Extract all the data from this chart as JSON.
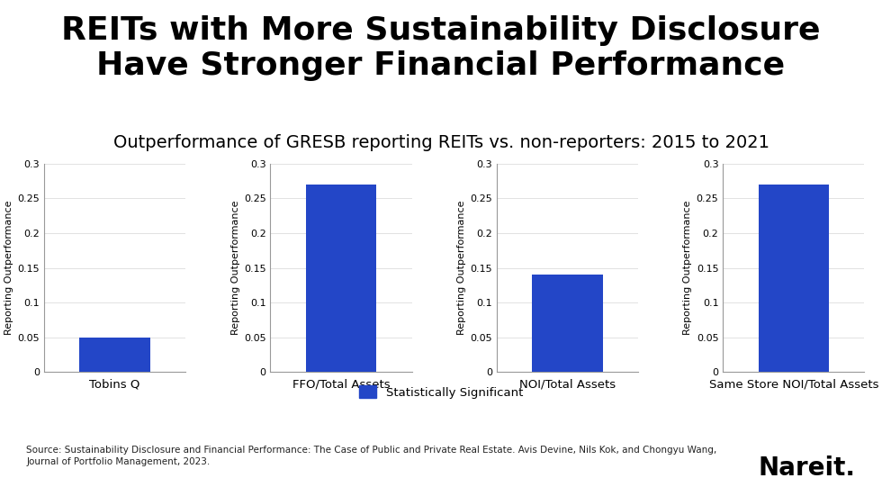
{
  "title": "REITs with More Sustainability Disclosure\nHave Stronger Financial Performance",
  "subtitle": "Outperformance of GRESB reporting REITs vs. non-reporters: 2015 to 2021",
  "charts": [
    {
      "label": "Tobins Q",
      "value": 0.05,
      "ylim": [
        0,
        0.3
      ]
    },
    {
      "label": "FFO/Total Assets",
      "value": 0.27,
      "ylim": [
        0,
        0.3
      ]
    },
    {
      "label": "NOI/Total Assets",
      "value": 0.14,
      "ylim": [
        0,
        0.3
      ]
    },
    {
      "label": "Same Store NOI/Total Assets",
      "value": 0.27,
      "ylim": [
        0,
        0.3
      ]
    }
  ],
  "bar_color": "#2346c7",
  "yticks": [
    0,
    0.05,
    0.1,
    0.15,
    0.2,
    0.25,
    0.3
  ],
  "ylabel": "Reporting Outperformance",
  "legend_label": "Statistically Significant",
  "source_text": "Source: Sustainability Disclosure and Financial Performance: The Case of Public and Private Real Estate. Avis Devine, Nils Kok, and Chongyu Wang,\nJournal of Portfolio Management, 2023.",
  "nareit_text": "Nareit.",
  "title_fontsize": 26,
  "subtitle_fontsize": 14,
  "ylabel_fontsize": 8,
  "tick_fontsize": 8,
  "xlabel_fontsize": 9.5,
  "source_fontsize": 7.5,
  "nareit_fontsize": 20,
  "background_color": "#ffffff"
}
